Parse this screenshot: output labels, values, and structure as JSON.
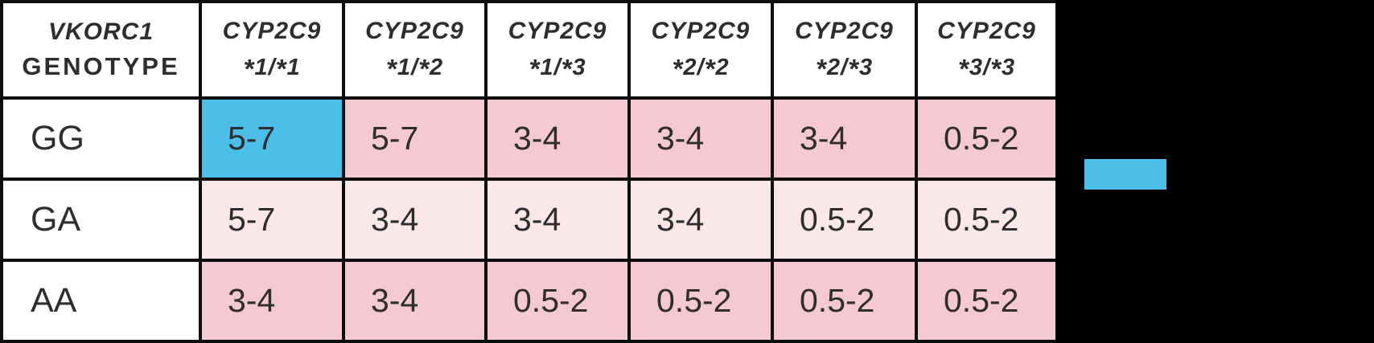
{
  "colors": {
    "background": "#000000",
    "table_bg": "#ffffff",
    "border": "#0d0d0d",
    "text": "#2e2e2e",
    "highlight_blue": "#4cbfe8",
    "pink_medium": "#f4c9d1",
    "pink_light": "#fae7e9"
  },
  "table": {
    "corner": {
      "line1": "VKORC1",
      "line2": "GENOTYPE"
    },
    "columns": [
      {
        "line1": "CYP2C9",
        "line2": "*1/*1"
      },
      {
        "line1": "CYP2C9",
        "line2": "*1/*2"
      },
      {
        "line1": "CYP2C9",
        "line2": "*1/*3"
      },
      {
        "line1": "CYP2C9",
        "line2": "*2/*2"
      },
      {
        "line1": "CYP2C9",
        "line2": "*2/*3"
      },
      {
        "line1": "CYP2C9",
        "line2": "*3/*3"
      }
    ],
    "rows": [
      {
        "label": "GG",
        "values": [
          "5-7",
          "5-7",
          "3-4",
          "3-4",
          "3-4",
          "0.5-2"
        ],
        "shades": [
          "blue",
          "medium",
          "medium",
          "medium",
          "medium",
          "medium"
        ]
      },
      {
        "label": "GA",
        "values": [
          "5-7",
          "3-4",
          "3-4",
          "3-4",
          "0.5-2",
          "0.5-2"
        ],
        "shades": [
          "light",
          "light",
          "light",
          "light",
          "light",
          "light"
        ]
      },
      {
        "label": "AA",
        "values": [
          "3-4",
          "3-4",
          "0.5-2",
          "0.5-2",
          "0.5-2",
          "0.5-2"
        ],
        "shades": [
          "medium",
          "medium",
          "medium",
          "medium",
          "medium",
          "medium"
        ]
      }
    ]
  },
  "legend": {
    "swatch_color": "#4cbfe8"
  },
  "chart_data": {
    "type": "table",
    "title": "",
    "row_header": "VKORC1 GENOTYPE",
    "columns": [
      "CYP2C9 *1/*1",
      "CYP2C9 *1/*2",
      "CYP2C9 *1/*3",
      "CYP2C9 *2/*2",
      "CYP2C9 *2/*3",
      "CYP2C9 *3/*3"
    ],
    "rows": [
      "GG",
      "GA",
      "AA"
    ],
    "values": [
      [
        "5-7",
        "5-7",
        "3-4",
        "3-4",
        "3-4",
        "0.5-2"
      ],
      [
        "5-7",
        "3-4",
        "3-4",
        "3-4",
        "0.5-2",
        "0.5-2"
      ],
      [
        "3-4",
        "3-4",
        "0.5-2",
        "0.5-2",
        "0.5-2",
        "0.5-2"
      ]
    ],
    "cell_shading": {
      "GG": [
        "blue",
        "medium-pink",
        "medium-pink",
        "medium-pink",
        "medium-pink",
        "medium-pink"
      ],
      "GA": [
        "light-pink",
        "light-pink",
        "light-pink",
        "light-pink",
        "light-pink",
        "light-pink"
      ],
      "AA": [
        "medium-pink",
        "medium-pink",
        "medium-pink",
        "medium-pink",
        "medium-pink",
        "medium-pink"
      ]
    },
    "highlighted_cell": {
      "row": "GG",
      "column": "CYP2C9 *1/*1",
      "value": "5-7",
      "highlight_color": "#4cbfe8"
    },
    "legend": [
      {
        "swatch_color": "#4cbfe8",
        "label": ""
      }
    ]
  }
}
